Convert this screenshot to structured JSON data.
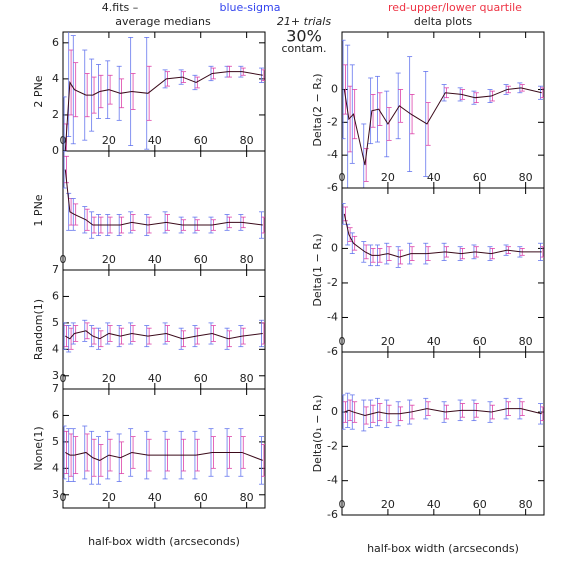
{
  "header": {
    "file": "4.fits  –",
    "sigma_note": "blue-sigma",
    "quartile_note": "red-upper/lower quartile",
    "left_title": "average medians",
    "trials": "21+ trials",
    "contam_pct": "30%",
    "contam": "contam.",
    "right_title": "delta plots"
  },
  "chart_data": [
    {
      "type": "line",
      "y_label": "2 PNe",
      "x": [
        1,
        3,
        5,
        10,
        13,
        16,
        20,
        25,
        30,
        37,
        45,
        52,
        58,
        65,
        72,
        78,
        87
      ],
      "values": [
        0,
        3.8,
        3.4,
        3.1,
        3.1,
        3.3,
        3.4,
        3.2,
        3.3,
        3.2,
        4.0,
        4.1,
        3.8,
        4.3,
        4.4,
        4.4,
        4.2
      ],
      "sigma": [
        3,
        3,
        3,
        2.5,
        2,
        1.5,
        1.6,
        1.5,
        3,
        3.1,
        0.5,
        0.4,
        0.4,
        0.4,
        0.3,
        0.3,
        0.4
      ],
      "quartile": [
        1.5,
        1.8,
        1.5,
        1.2,
        1,
        0.9,
        0.8,
        0.8,
        1,
        1.5,
        0.4,
        0.3,
        0.3,
        0.3,
        0.3,
        0.2,
        0.3
      ],
      "xlim": [
        0,
        88
      ],
      "ylim": [
        0,
        6.6
      ],
      "xticks": [
        0,
        20,
        40,
        60,
        80
      ],
      "yticks": [
        0,
        2,
        4,
        6
      ],
      "x_label": null
    },
    {
      "type": "line",
      "y_label": "1 PNe",
      "x": [
        1,
        3,
        5,
        10,
        13,
        16,
        20,
        25,
        30,
        37,
        45,
        52,
        58,
        65,
        72,
        78,
        87
      ],
      "values": [
        6.3,
        4.7,
        4.6,
        4.4,
        4.2,
        4.2,
        4.2,
        4.2,
        4.3,
        4.2,
        4.3,
        4.2,
        4.2,
        4.2,
        4.3,
        4.3,
        4.2
      ],
      "sigma": [
        0.7,
        0.7,
        0.6,
        0.5,
        0.5,
        0.4,
        0.4,
        0.4,
        0.4,
        0.4,
        0.4,
        0.3,
        0.3,
        0.3,
        0.3,
        0.3,
        0.5
      ],
      "quartile": [
        0.5,
        0.5,
        0.4,
        0.4,
        0.3,
        0.3,
        0.3,
        0.3,
        0.3,
        0.3,
        0.3,
        0.2,
        0.2,
        0.2,
        0.2,
        0.2,
        0.3
      ],
      "xlim": [
        0,
        88
      ],
      "ylim": [
        2.5,
        7
      ],
      "xticks": [
        0,
        20,
        40,
        60,
        80
      ],
      "yticks": [],
      "x_label": null
    },
    {
      "type": "line",
      "y_label": "Random(1)",
      "x": [
        1,
        3,
        5,
        10,
        13,
        16,
        20,
        25,
        30,
        37,
        45,
        52,
        58,
        65,
        72,
        78,
        87
      ],
      "values": [
        4.5,
        4.4,
        4.6,
        4.7,
        4.5,
        4.4,
        4.6,
        4.5,
        4.6,
        4.5,
        4.6,
        4.4,
        4.5,
        4.6,
        4.4,
        4.5,
        4.6
      ],
      "sigma": [
        0.5,
        0.5,
        0.4,
        0.4,
        0.4,
        0.4,
        0.4,
        0.4,
        0.4,
        0.4,
        0.4,
        0.4,
        0.4,
        0.4,
        0.4,
        0.4,
        0.5
      ],
      "quartile": [
        0.4,
        0.4,
        0.3,
        0.3,
        0.3,
        0.3,
        0.3,
        0.3,
        0.3,
        0.3,
        0.3,
        0.3,
        0.3,
        0.3,
        0.3,
        0.3,
        0.4
      ],
      "xlim": [
        0,
        88
      ],
      "ylim": [
        2.5,
        7
      ],
      "xticks": [
        0,
        20,
        40,
        60,
        80
      ],
      "yticks": [
        3,
        4,
        5,
        6,
        7
      ],
      "x_label": null
    },
    {
      "type": "line",
      "y_label": "None(1)",
      "x": [
        1,
        3,
        5,
        10,
        13,
        16,
        20,
        25,
        30,
        37,
        45,
        52,
        58,
        65,
        72,
        78,
        87
      ],
      "values": [
        4.6,
        4.5,
        4.5,
        4.6,
        4.4,
        4.3,
        4.5,
        4.4,
        4.6,
        4.5,
        4.5,
        4.5,
        4.5,
        4.6,
        4.6,
        4.6,
        4.3
      ],
      "sigma": [
        1,
        1,
        1,
        1,
        1,
        0.9,
        0.9,
        0.9,
        0.9,
        0.9,
        0.9,
        0.9,
        0.9,
        0.9,
        0.9,
        0.9,
        0.9
      ],
      "quartile": [
        0.8,
        0.8,
        0.7,
        0.7,
        0.7,
        0.6,
        0.6,
        0.6,
        0.6,
        0.6,
        0.6,
        0.6,
        0.6,
        0.6,
        0.6,
        0.6,
        0.6
      ],
      "xlim": [
        0,
        88
      ],
      "ylim": [
        2.5,
        7
      ],
      "xticks": [
        0,
        20,
        40,
        60,
        80
      ],
      "yticks": [
        3,
        4,
        5,
        6,
        7
      ],
      "x_label": "half-box width (arcseconds)"
    },
    {
      "type": "line",
      "y_label": "Delta(2 − R₂)",
      "x": [
        1,
        3,
        5,
        10,
        13,
        16,
        20,
        25,
        30,
        37,
        45,
        52,
        58,
        65,
        72,
        78,
        87
      ],
      "values": [
        0,
        -1.8,
        -1.5,
        -4.6,
        -1.3,
        -1.2,
        -2.1,
        -1.0,
        -1.5,
        -2.1,
        -0.2,
        -0.3,
        -0.5,
        -0.4,
        0,
        0.1,
        -0.2
      ],
      "sigma": [
        3,
        4.5,
        3,
        2.5,
        2,
        2,
        2,
        2,
        3.5,
        3.2,
        0.5,
        0.4,
        0.4,
        0.4,
        0.3,
        0.3,
        0.4
      ],
      "quartile": [
        1.5,
        2,
        1.5,
        1,
        1,
        1,
        1,
        1,
        1.2,
        1.3,
        0.3,
        0.3,
        0.3,
        0.3,
        0.2,
        0.2,
        0.3
      ],
      "xlim": [
        0,
        88
      ],
      "ylim": [
        -6,
        3.5
      ],
      "xticks": [
        0,
        20,
        40,
        60,
        80
      ],
      "yticks": [
        -6,
        -4,
        -2,
        0
      ],
      "x_label": null
    },
    {
      "type": "line",
      "y_label": "Delta(1 − R₁)",
      "x": [
        1,
        3,
        5,
        10,
        13,
        16,
        20,
        25,
        30,
        37,
        45,
        52,
        58,
        65,
        72,
        78,
        87
      ],
      "values": [
        2,
        0.8,
        0.3,
        -0.2,
        -0.4,
        -0.4,
        -0.3,
        -0.5,
        -0.3,
        -0.3,
        -0.2,
        -0.3,
        -0.2,
        -0.3,
        -0.1,
        -0.2,
        -0.2
      ],
      "sigma": [
        0.6,
        0.6,
        0.6,
        0.6,
        0.6,
        0.6,
        0.6,
        0.6,
        0.6,
        0.6,
        0.5,
        0.4,
        0.4,
        0.4,
        0.3,
        0.3,
        0.5
      ],
      "quartile": [
        0.4,
        0.4,
        0.4,
        0.4,
        0.4,
        0.4,
        0.4,
        0.4,
        0.4,
        0.4,
        0.3,
        0.3,
        0.3,
        0.3,
        0.2,
        0.2,
        0.3
      ],
      "xlim": [
        0,
        88
      ],
      "ylim": [
        -6,
        3.5
      ],
      "xticks": [
        0,
        20,
        40,
        60,
        80
      ],
      "yticks": [
        -6,
        -4,
        -2,
        0
      ],
      "x_label": null
    },
    {
      "type": "line",
      "y_label": "Delta(0₁ − R₁)",
      "x": [
        1,
        3,
        5,
        10,
        13,
        16,
        20,
        25,
        30,
        37,
        45,
        52,
        58,
        65,
        72,
        78,
        87
      ],
      "values": [
        0,
        0.1,
        0,
        -0.2,
        -0.1,
        0,
        -0.1,
        -0.1,
        0,
        0.2,
        0,
        0.1,
        0.1,
        0,
        0.2,
        0.2,
        -0.1
      ],
      "sigma": [
        1,
        1,
        1,
        0.9,
        0.8,
        0.8,
        0.8,
        0.7,
        0.7,
        0.6,
        0.6,
        0.6,
        0.6,
        0.6,
        0.6,
        0.6,
        0.6
      ],
      "quartile": [
        0.6,
        0.6,
        0.6,
        0.5,
        0.5,
        0.5,
        0.5,
        0.4,
        0.4,
        0.4,
        0.4,
        0.4,
        0.4,
        0.4,
        0.4,
        0.4,
        0.4
      ],
      "xlim": [
        0,
        88
      ],
      "ylim": [
        -6,
        3.5
      ],
      "xticks": [
        0,
        20,
        40,
        60,
        80
      ],
      "yticks": [
        -6,
        -4,
        -2,
        0
      ],
      "x_label": "half-box width (arcseconds)"
    }
  ]
}
